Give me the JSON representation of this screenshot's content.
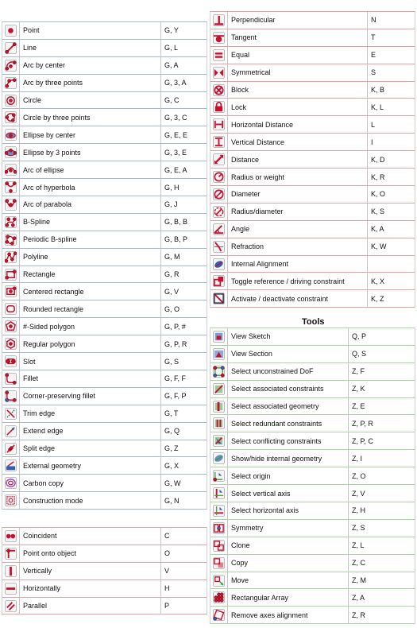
{
  "sketcher_geometry": [
    {
      "name": "Point",
      "keys": "G, Y",
      "icon": "point-icon"
    },
    {
      "name": "Line",
      "keys": "G, L",
      "icon": "line-icon"
    },
    {
      "name": "Arc by center",
      "keys": "G, A",
      "icon": "arc-center-icon"
    },
    {
      "name": "Arc by three points",
      "keys": "G, 3, A",
      "icon": "arc-three-points-icon"
    },
    {
      "name": "Circle",
      "keys": "G, C",
      "icon": "circle-icon"
    },
    {
      "name": "Circle by three points",
      "keys": "G, 3, C",
      "icon": "circle-three-points-icon"
    },
    {
      "name": "Ellipse by center",
      "keys": "G, E, E",
      "icon": "ellipse-center-icon"
    },
    {
      "name": "Ellipse by 3 points",
      "keys": "G, 3, E",
      "icon": "ellipse-three-points-icon"
    },
    {
      "name": "Arc of ellipse",
      "keys": "G, E, A",
      "icon": "arc-ellipse-icon"
    },
    {
      "name": "Arc of hyperbola",
      "keys": "G, H",
      "icon": "arc-hyperbola-icon"
    },
    {
      "name": "Arc of parabola",
      "keys": "G, J",
      "icon": "arc-parabola-icon"
    },
    {
      "name": "B-Spline",
      "keys": "G, B, B",
      "icon": "bspline-icon"
    },
    {
      "name": "Periodic B-spline",
      "keys": "G, B, P",
      "icon": "periodic-bspline-icon"
    },
    {
      "name": "Polyline",
      "keys": "G, M",
      "icon": "polyline-icon"
    },
    {
      "name": "Rectangle",
      "keys": "G, R",
      "icon": "rectangle-icon"
    },
    {
      "name": "Centered rectangle",
      "keys": "G, V",
      "icon": "centered-rectangle-icon"
    },
    {
      "name": "Rounded rectangle",
      "keys": "G, O",
      "icon": "rounded-rectangle-icon"
    },
    {
      "name": "#-Sided polygon",
      "keys": "G, P, #",
      "icon": "polygon-icon"
    },
    {
      "name": "Regular polygon",
      "keys": "G, P, R",
      "icon": "regular-polygon-icon"
    },
    {
      "name": "Slot",
      "keys": "G, S",
      "icon": "slot-icon"
    },
    {
      "name": "Fillet",
      "keys": "G, F, F",
      "icon": "fillet-icon"
    },
    {
      "name": "Corner-preserving fillet",
      "keys": "G, F, P",
      "icon": "corner-fillet-icon"
    },
    {
      "name": "Trim edge",
      "keys": "G, T",
      "icon": "trim-icon"
    },
    {
      "name": "Extend edge",
      "keys": "G, Q",
      "icon": "extend-icon"
    },
    {
      "name": "Split edge",
      "keys": "G, Z",
      "icon": "split-icon"
    },
    {
      "name": "External geometry",
      "keys": "G, X",
      "icon": "external-geometry-icon"
    },
    {
      "name": "Carbon copy",
      "keys": "G, W",
      "icon": "carbon-copy-icon"
    },
    {
      "name": "Construction mode",
      "keys": "G, N",
      "icon": "construction-mode-icon"
    }
  ],
  "constraints_left": [
    {
      "name": "Coincident",
      "keys": "C",
      "icon": "coincident-icon"
    },
    {
      "name": "Point onto object",
      "keys": "O",
      "icon": "point-on-object-icon"
    },
    {
      "name": "Vertically",
      "keys": "V",
      "icon": "vertical-icon"
    },
    {
      "name": "Horizontally",
      "keys": "H",
      "icon": "horizontal-icon"
    },
    {
      "name": "Parallel",
      "keys": "P",
      "icon": "parallel-icon"
    }
  ],
  "constraints_right": [
    {
      "name": "Perpendicular",
      "keys": "N",
      "icon": "perpendicular-icon"
    },
    {
      "name": "Tangent",
      "keys": "T",
      "icon": "tangent-icon"
    },
    {
      "name": "Equal",
      "keys": "E",
      "icon": "equal-icon"
    },
    {
      "name": "Symmetrical",
      "keys": "S",
      "icon": "symmetrical-icon"
    },
    {
      "name": "Block",
      "keys": "K, B",
      "icon": "block-icon"
    },
    {
      "name": "Lock",
      "keys": "K, L",
      "icon": "lock-icon"
    },
    {
      "name": "Horizontal Distance",
      "keys": "L",
      "icon": "horizontal-distance-icon"
    },
    {
      "name": "Vertical Distance",
      "keys": "I",
      "icon": "vertical-distance-icon"
    },
    {
      "name": "Distance",
      "keys": "K, D",
      "icon": "distance-icon"
    },
    {
      "name": "Radius or weight",
      "keys": "K, R",
      "icon": "radius-icon"
    },
    {
      "name": "Diameter",
      "keys": "K, O",
      "icon": "diameter-icon"
    },
    {
      "name": "Radius/diameter",
      "keys": "K, S",
      "icon": "radius-diameter-icon"
    },
    {
      "name": "Angle",
      "keys": "K, A",
      "icon": "angle-icon"
    },
    {
      "name": "Refraction",
      "keys": "K, W",
      "icon": "refraction-icon"
    },
    {
      "name": "Internal Alignment",
      "keys": "",
      "icon": "internal-alignment-icon"
    },
    {
      "name": "Toggle reference / driving constraint",
      "keys": "K, X",
      "icon": "toggle-driving-icon"
    },
    {
      "name": "Activate / deactivate constraint",
      "keys": "K, Z",
      "icon": "activate-constraint-icon"
    }
  ],
  "tools": {
    "title": "Tools",
    "items": [
      {
        "name": "View Sketch",
        "keys": "Q, P",
        "icon": "view-sketch-icon"
      },
      {
        "name": "View Section",
        "keys": "Q, S",
        "icon": "view-section-icon"
      },
      {
        "name": "Select unconstrained DoF",
        "keys": "Z, F",
        "icon": "select-unconstrained-icon"
      },
      {
        "name": "Select associated constraints",
        "keys": "Z, K",
        "icon": "select-assoc-constraints-icon"
      },
      {
        "name": "Select associated geometry",
        "keys": "Z, E",
        "icon": "select-assoc-geometry-icon"
      },
      {
        "name": "Select redundant constraints",
        "keys": "Z, P, R",
        "icon": "select-redundant-icon"
      },
      {
        "name": "Select conflicting constraints",
        "keys": "Z, P, C",
        "icon": "select-conflicting-icon"
      },
      {
        "name": "Show/hide internal geometry",
        "keys": "Z, I",
        "icon": "show-hide-internal-icon"
      },
      {
        "name": "Select origin",
        "keys": "Z, O",
        "icon": "select-origin-icon"
      },
      {
        "name": "Select vertical axis",
        "keys": "Z, V",
        "icon": "select-vertical-axis-icon"
      },
      {
        "name": "Select horizontal axis",
        "keys": "Z, H",
        "icon": "select-horizontal-axis-icon"
      },
      {
        "name": "Symmetry",
        "keys": "Z, S",
        "icon": "symmetry-icon"
      },
      {
        "name": "Clone",
        "keys": "Z, L",
        "icon": "clone-icon"
      },
      {
        "name": "Copy",
        "keys": "Z, C",
        "icon": "copy-icon"
      },
      {
        "name": "Move",
        "keys": "Z, M",
        "icon": "move-icon"
      },
      {
        "name": "Rectangular Array",
        "keys": "Z, A",
        "icon": "rectangular-array-icon"
      },
      {
        "name": "Remove axes alignment",
        "keys": "Z, R",
        "icon": "remove-axes-alignment-icon"
      }
    ]
  },
  "colors": {
    "geometry_border": "#a9b9c9",
    "constraint_border": "#e8a0a0",
    "tools_border": "#a8d8a0",
    "icon_red": "#c8102e",
    "icon_blue": "#2a62b8",
    "icon_green": "#3aa040"
  }
}
